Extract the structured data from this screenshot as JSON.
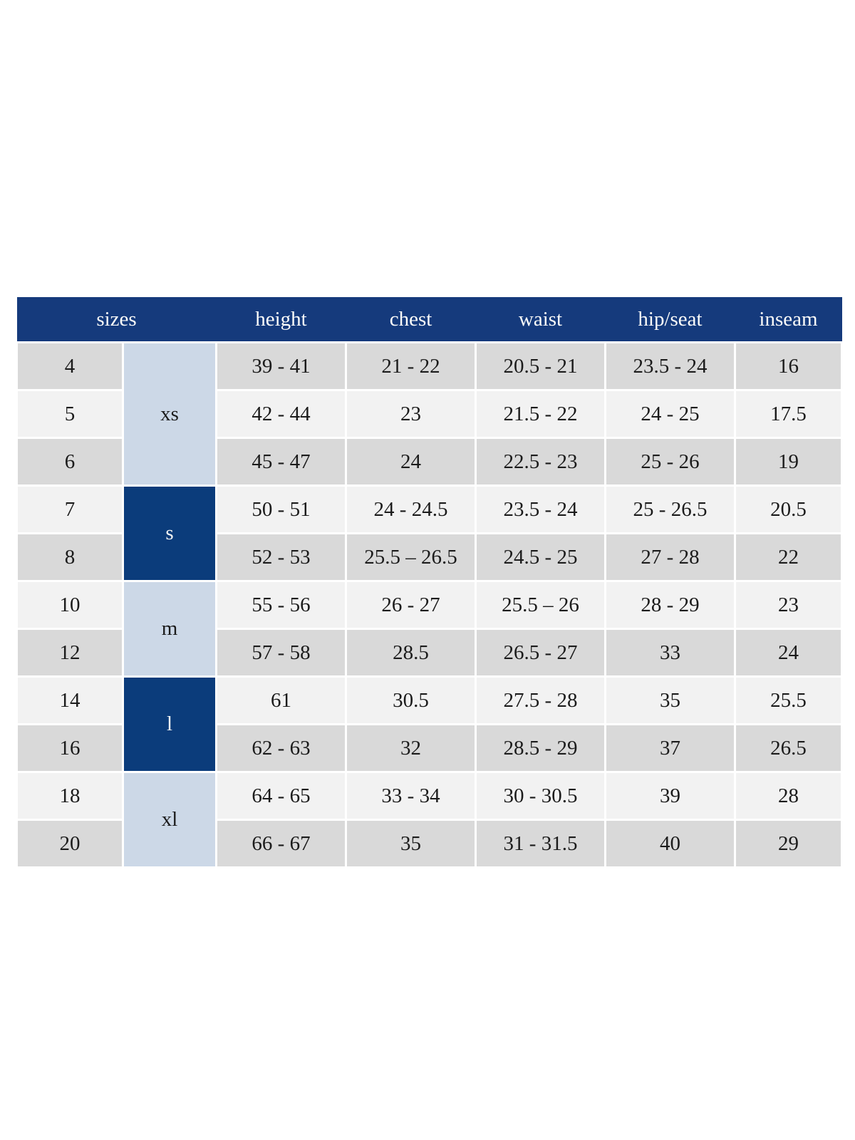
{
  "colors": {
    "header_navy": "#153a7c",
    "group_dark_navy": "#0b3c7b",
    "group_light_blue": "#ccd8e7",
    "row_gray": "#d9d9d9",
    "row_light": "#f2f2f2",
    "separator_white": "#ffffff",
    "header_text": "#fcfcfa",
    "body_text": "#1b1b1b"
  },
  "table": {
    "headers": [
      "sizes",
      "height",
      "chest",
      "waist",
      "hip/seat",
      "inseam"
    ],
    "groups": [
      "xs",
      "s",
      "m",
      "l",
      "xl"
    ],
    "rows": [
      {
        "size": "4",
        "height": "39 - 41",
        "chest": "21 - 22",
        "waist": "20.5 - 21",
        "hip_seat": "23.5 - 24",
        "inseam": "16"
      },
      {
        "size": "5",
        "height": "42 - 44",
        "chest": "23",
        "waist": "21.5 - 22",
        "hip_seat": "24 - 25",
        "inseam": "17.5"
      },
      {
        "size": "6",
        "height": "45 - 47",
        "chest": "24",
        "waist": "22.5 - 23",
        "hip_seat": "25 - 26",
        "inseam": "19"
      },
      {
        "size": "7",
        "height": "50 - 51",
        "chest": "24 - 24.5",
        "waist": "23.5 - 24",
        "hip_seat": "25 - 26.5",
        "inseam": "20.5"
      },
      {
        "size": "8",
        "height": "52 - 53",
        "chest": "25.5 – 26.5",
        "waist": "24.5 - 25",
        "hip_seat": "27 - 28",
        "inseam": "22"
      },
      {
        "size": "10",
        "height": "55 - 56",
        "chest": "26 - 27",
        "waist": "25.5 – 26",
        "hip_seat": "28 - 29",
        "inseam": "23"
      },
      {
        "size": "12",
        "height": "57 - 58",
        "chest": "28.5",
        "waist": "26.5 - 27",
        "hip_seat": "33",
        "inseam": "24"
      },
      {
        "size": "14",
        "height": "61",
        "chest": "30.5",
        "waist": "27.5 - 28",
        "hip_seat": "35",
        "inseam": "25.5"
      },
      {
        "size": "16",
        "height": "62 - 63",
        "chest": "32",
        "waist": "28.5 - 29",
        "hip_seat": "37",
        "inseam": "26.5"
      },
      {
        "size": "18",
        "height": "64 - 65",
        "chest": "33 - 34",
        "waist": "30 - 30.5",
        "hip_seat": "39",
        "inseam": "28"
      },
      {
        "size": "20",
        "height": "66 - 67",
        "chest": "35",
        "waist": "31 - 31.5",
        "hip_seat": "40",
        "inseam": "29"
      }
    ]
  }
}
